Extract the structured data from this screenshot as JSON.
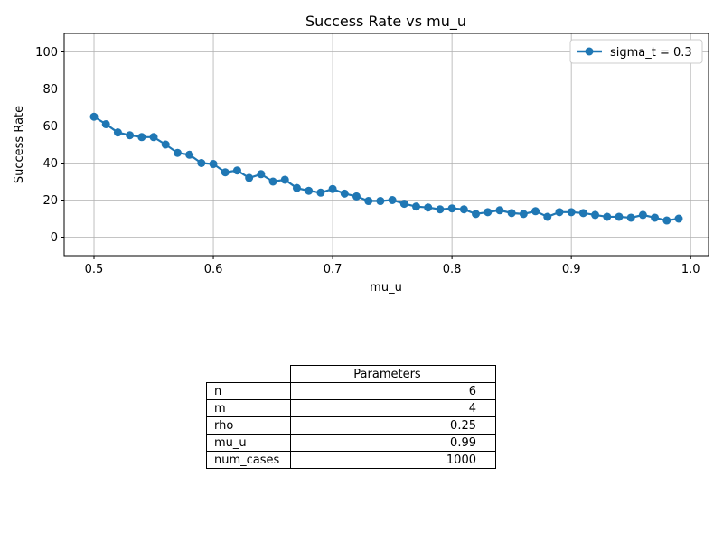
{
  "chart_data": {
    "type": "line",
    "title": "Success Rate vs mu_u",
    "xlabel": "mu_u",
    "ylabel": "Success Rate",
    "xlim": [
      0.475,
      1.015
    ],
    "ylim": [
      -10,
      110
    ],
    "xticks": [
      0.5,
      0.6,
      0.7,
      0.8,
      0.9,
      1.0
    ],
    "xtick_labels": [
      "0.5",
      "0.6",
      "0.7",
      "0.8",
      "0.9",
      "1.0"
    ],
    "yticks": [
      0,
      20,
      40,
      60,
      80,
      100
    ],
    "ytick_labels": [
      "0",
      "20",
      "40",
      "60",
      "80",
      "100"
    ],
    "grid": true,
    "legend_position": "top-right",
    "color": "#1f77b4",
    "series": [
      {
        "name": "sigma_t = 0.3",
        "x": [
          0.5,
          0.51,
          0.52,
          0.53,
          0.54,
          0.55,
          0.56,
          0.57,
          0.58,
          0.59,
          0.6,
          0.61,
          0.62,
          0.63,
          0.64,
          0.65,
          0.66,
          0.67,
          0.68,
          0.69,
          0.7,
          0.71,
          0.72,
          0.73,
          0.74,
          0.75,
          0.76,
          0.77,
          0.78,
          0.79,
          0.8,
          0.81,
          0.82,
          0.83,
          0.84,
          0.85,
          0.86,
          0.87,
          0.88,
          0.89,
          0.9,
          0.91,
          0.92,
          0.93,
          0.94,
          0.95,
          0.96,
          0.97,
          0.98,
          0.99
        ],
        "y": [
          65,
          61,
          56.5,
          55,
          54,
          54,
          50,
          45.5,
          44.5,
          40,
          39.5,
          35,
          36,
          32,
          34,
          30,
          31,
          26.5,
          25,
          24,
          26,
          23.5,
          22,
          19.5,
          19.5,
          20,
          18,
          16.5,
          16,
          15,
          15.5,
          15,
          12.5,
          13.5,
          14.5,
          13,
          12.5,
          14,
          11,
          13.5,
          13.5,
          13,
          12,
          11,
          11,
          10.5,
          12,
          10.5,
          9,
          10
        ]
      }
    ]
  },
  "table": {
    "header": "Parameters",
    "rows": [
      {
        "key": "n",
        "value": "6"
      },
      {
        "key": "m",
        "value": "4"
      },
      {
        "key": "rho",
        "value": "0.25"
      },
      {
        "key": "mu_u",
        "value": "0.99"
      },
      {
        "key": "num_cases",
        "value": "1000"
      }
    ]
  }
}
